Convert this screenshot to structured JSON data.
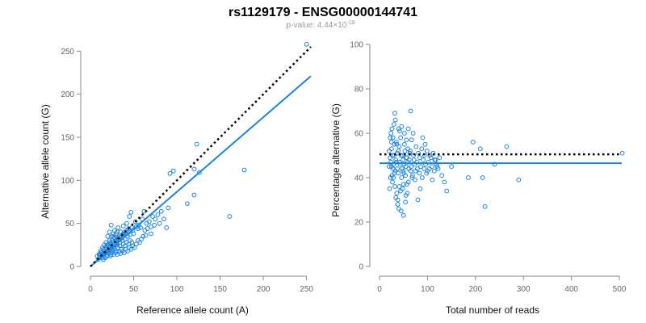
{
  "colors": {
    "points": "#1b84e0",
    "fit": "#1b84e0",
    "reference": "#000000",
    "axis": "#888888"
  },
  "header": {
    "title": "rs1129179 - ENSG00000144741",
    "pvalue_prefix": "p-value: 4.44×10",
    "pvalue_exp": "-18"
  },
  "chart_data": [
    {
      "type": "scatter",
      "name": "allele-counts",
      "xlabel": "Reference allele count (A)",
      "ylabel": "Alternative allele count (G)",
      "xlim": [
        0,
        255
      ],
      "ylim": [
        0,
        255
      ],
      "xticks": [
        0,
        50,
        100,
        150,
        200,
        250
      ],
      "yticks": [
        0,
        50,
        100,
        150,
        200,
        250
      ],
      "fit_line": {
        "x": [
          0,
          255
        ],
        "y": [
          0,
          221
        ]
      },
      "reference_line": {
        "x": [
          0,
          255
        ],
        "y": [
          0,
          255
        ]
      },
      "points": [
        [
          250,
          258
        ],
        [
          123,
          142
        ],
        [
          120,
          113
        ],
        [
          126,
          109
        ],
        [
          92,
          108
        ],
        [
          96,
          111
        ],
        [
          178,
          112
        ],
        [
          120,
          83
        ],
        [
          161,
          58
        ],
        [
          112,
          73
        ],
        [
          88,
          45
        ],
        [
          62,
          64
        ],
        [
          60,
          55
        ],
        [
          75,
          55
        ],
        [
          64,
          36
        ],
        [
          55,
          44
        ],
        [
          70,
          38
        ],
        [
          47,
          63
        ],
        [
          45,
          58
        ],
        [
          52,
          52
        ],
        [
          48,
          45
        ],
        [
          42,
          50
        ],
        [
          38,
          47
        ],
        [
          35,
          40
        ],
        [
          32,
          45
        ],
        [
          30,
          38
        ],
        [
          28,
          42
        ],
        [
          25,
          35
        ],
        [
          22,
          30
        ],
        [
          20,
          25
        ],
        [
          18,
          22
        ],
        [
          16,
          18
        ],
        [
          15,
          20
        ],
        [
          14,
          15
        ],
        [
          13,
          12
        ],
        [
          12,
          18
        ],
        [
          11,
          14
        ],
        [
          10,
          10
        ],
        [
          9,
          8
        ],
        [
          8,
          12
        ],
        [
          19,
          12
        ],
        [
          21,
          15
        ],
        [
          23,
          20
        ],
        [
          24,
          26
        ],
        [
          26,
          28
        ],
        [
          27,
          22
        ],
        [
          29,
          30
        ],
        [
          31,
          25
        ],
        [
          33,
          32
        ],
        [
          34,
          28
        ],
        [
          36,
          34
        ],
        [
          37,
          30
        ],
        [
          39,
          36
        ],
        [
          40,
          32
        ],
        [
          41,
          38
        ],
        [
          43,
          35
        ],
        [
          44,
          40
        ],
        [
          46,
          37
        ],
        [
          49,
          42
        ],
        [
          50,
          38
        ],
        [
          53,
          46
        ],
        [
          56,
          48
        ],
        [
          58,
          45
        ],
        [
          65,
          50
        ],
        [
          68,
          52
        ],
        [
          72,
          58
        ],
        [
          78,
          60
        ],
        [
          82,
          64
        ],
        [
          85,
          55
        ],
        [
          90,
          68
        ],
        [
          17,
          10
        ],
        [
          15,
          8
        ],
        [
          20,
          13
        ],
        [
          22,
          17
        ],
        [
          24,
          14
        ],
        [
          26,
          19
        ],
        [
          28,
          20
        ],
        [
          30,
          18
        ],
        [
          32,
          22
        ],
        [
          34,
          24
        ],
        [
          36,
          20
        ],
        [
          38,
          26
        ],
        [
          40,
          24
        ],
        [
          42,
          28
        ],
        [
          44,
          26
        ],
        [
          46,
          30
        ],
        [
          48,
          28
        ],
        [
          18,
          28
        ],
        [
          20,
          35
        ],
        [
          22,
          40
        ],
        [
          24,
          48
        ],
        [
          26,
          38
        ],
        [
          28,
          33
        ],
        [
          30,
          27
        ],
        [
          16,
          25
        ],
        [
          14,
          22
        ],
        [
          12,
          16
        ],
        [
          10,
          14
        ],
        [
          19,
          17
        ],
        [
          21,
          22
        ],
        [
          23,
          12
        ],
        [
          25,
          16
        ],
        [
          27,
          14
        ],
        [
          29,
          16
        ],
        [
          31,
          14
        ],
        [
          33,
          17
        ],
        [
          35,
          15
        ],
        [
          37,
          18
        ],
        [
          39,
          16
        ],
        [
          41,
          20
        ],
        [
          43,
          18
        ],
        [
          45,
          22
        ],
        [
          47,
          20
        ],
        [
          49,
          24
        ],
        [
          51,
          22
        ],
        [
          53,
          26
        ],
        [
          55,
          30
        ],
        [
          57,
          28
        ],
        [
          59,
          32
        ],
        [
          61,
          35
        ],
        [
          63,
          42
        ],
        [
          66,
          44
        ],
        [
          70,
          46
        ],
        [
          74,
          48
        ],
        [
          80,
          50
        ],
        [
          16,
          14
        ],
        [
          18,
          16
        ],
        [
          20,
          18
        ],
        [
          22,
          22
        ],
        [
          24,
          20
        ],
        [
          26,
          24
        ],
        [
          28,
          26
        ],
        [
          30,
          30
        ],
        [
          32,
          32
        ],
        [
          34,
          34
        ],
        [
          36,
          36
        ],
        [
          38,
          38
        ],
        [
          40,
          40
        ],
        [
          42,
          42
        ],
        [
          44,
          44
        ],
        [
          14,
          10
        ],
        [
          13,
          16
        ],
        [
          17,
          20
        ],
        [
          19,
          24
        ],
        [
          21,
          26
        ],
        [
          23,
          28
        ],
        [
          25,
          30
        ],
        [
          27,
          34
        ],
        [
          29,
          36
        ],
        [
          31,
          40
        ]
      ]
    },
    {
      "type": "scatter",
      "name": "percentage-alternative",
      "xlabel": "Total number of reads",
      "ylabel": "Percentage alternative (G)",
      "xlim": [
        0,
        505
      ],
      "ylim": [
        0,
        100
      ],
      "xticks": [
        0,
        100,
        200,
        300,
        400,
        500
      ],
      "yticks": [
        0,
        20,
        40,
        60,
        80,
        100
      ],
      "fit_line": {
        "x": [
          0,
          505
        ],
        "y": [
          46.5,
          46.5
        ]
      },
      "reference_line": {
        "x": [
          0,
          505
        ],
        "y": [
          50.5,
          50.5
        ]
      },
      "points": [
        [
          506,
          51
        ],
        [
          290,
          39
        ],
        [
          265,
          54
        ],
        [
          240,
          46
        ],
        [
          220,
          27
        ],
        [
          215,
          40
        ],
        [
          210,
          53
        ],
        [
          195,
          56
        ],
        [
          185,
          40
        ],
        [
          150,
          45
        ],
        [
          140,
          34
        ],
        [
          135,
          38
        ],
        [
          130,
          41
        ],
        [
          120,
          45
        ],
        [
          115,
          48
        ],
        [
          110,
          39
        ],
        [
          105,
          50
        ],
        [
          100,
          43
        ],
        [
          95,
          55
        ],
        [
          90,
          58
        ],
        [
          85,
          35
        ],
        [
          80,
          30
        ],
        [
          75,
          43
        ],
        [
          70,
          60
        ],
        [
          65,
          70
        ],
        [
          68,
          40
        ],
        [
          72,
          48
        ],
        [
          60,
          38
        ],
        [
          55,
          32
        ],
        [
          50,
          23
        ],
        [
          45,
          25
        ],
        [
          40,
          62
        ],
        [
          38,
          30
        ],
        [
          35,
          56
        ],
        [
          33,
          66
        ],
        [
          32,
          69
        ],
        [
          30,
          50
        ],
        [
          28,
          44
        ],
        [
          26,
          41
        ],
        [
          25,
          53
        ],
        [
          24,
          47
        ],
        [
          22,
          49
        ],
        [
          20,
          45
        ],
        [
          20,
          52
        ],
        [
          21,
          35
        ],
        [
          23,
          40
        ],
        [
          25,
          56
        ],
        [
          27,
          38
        ],
        [
          29,
          46
        ],
        [
          31,
          42
        ],
        [
          34,
          48
        ],
        [
          36,
          55
        ],
        [
          37,
          44
        ],
        [
          39,
          52
        ],
        [
          41,
          36
        ],
        [
          42,
          47
        ],
        [
          44,
          58
        ],
        [
          46,
          40
        ],
        [
          48,
          50
        ],
        [
          49,
          43
        ],
        [
          51,
          46
        ],
        [
          52,
          55
        ],
        [
          54,
          41
        ],
        [
          56,
          49
        ],
        [
          57,
          37
        ],
        [
          59,
          53
        ],
        [
          61,
          44
        ],
        [
          62,
          48
        ],
        [
          64,
          52
        ],
        [
          66,
          45
        ],
        [
          67,
          57
        ],
        [
          69,
          41
        ],
        [
          71,
          50
        ],
        [
          73,
          46
        ],
        [
          74,
          39
        ],
        [
          76,
          54
        ],
        [
          78,
          47
        ],
        [
          79,
          44
        ],
        [
          81,
          51
        ],
        [
          83,
          42
        ],
        [
          84,
          49
        ],
        [
          86,
          45
        ],
        [
          88,
          53
        ],
        [
          89,
          40
        ],
        [
          91,
          48
        ],
        [
          93,
          44
        ],
        [
          94,
          50
        ],
        [
          96,
          46
        ],
        [
          98,
          42
        ],
        [
          99,
          52
        ],
        [
          102,
          47
        ],
        [
          104,
          44
        ],
        [
          107,
          49
        ],
        [
          109,
          45
        ],
        [
          112,
          51
        ],
        [
          114,
          43
        ],
        [
          117,
          48
        ],
        [
          119,
          46
        ],
        [
          122,
          44
        ],
        [
          125,
          49
        ],
        [
          22,
          58
        ],
        [
          24,
          60
        ],
        [
          26,
          62
        ],
        [
          28,
          58
        ],
        [
          30,
          64
        ],
        [
          32,
          36
        ],
        [
          34,
          31
        ],
        [
          36,
          33
        ],
        [
          38,
          28
        ],
        [
          40,
          26
        ],
        [
          42,
          61
        ],
        [
          44,
          34
        ],
        [
          46,
          63
        ],
        [
          48,
          35
        ],
        [
          50,
          37
        ],
        [
          52,
          60
        ],
        [
          54,
          29
        ],
        [
          56,
          57
        ],
        [
          58,
          33
        ],
        [
          60,
          62
        ],
        [
          25,
          45
        ],
        [
          27,
          50
        ],
        [
          29,
          40
        ],
        [
          31,
          55
        ],
        [
          33,
          43
        ],
        [
          35,
          47
        ],
        [
          37,
          51
        ],
        [
          39,
          42
        ],
        [
          41,
          54
        ],
        [
          43,
          46
        ],
        [
          45,
          50
        ],
        [
          47,
          44
        ],
        [
          49,
          48
        ],
        [
          51,
          42
        ],
        [
          53,
          52
        ],
        [
          55,
          45
        ],
        [
          57,
          49
        ],
        [
          59,
          47
        ],
        [
          63,
          51
        ],
        [
          65,
          43
        ]
      ]
    }
  ]
}
